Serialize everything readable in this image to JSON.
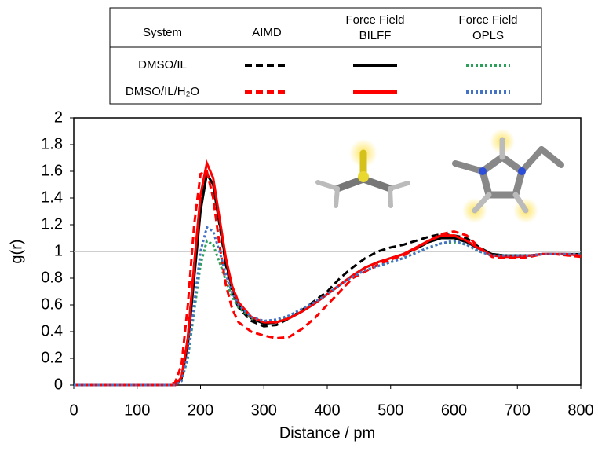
{
  "chart_data": {
    "type": "line",
    "xlabel": "Distance / pm",
    "ylabel": "g(r)",
    "x": [
      0,
      100,
      150,
      160,
      170,
      180,
      190,
      200,
      210,
      220,
      230,
      240,
      250,
      260,
      280,
      300,
      320,
      340,
      360,
      380,
      400,
      420,
      440,
      460,
      480,
      500,
      520,
      540,
      560,
      580,
      600,
      620,
      640,
      660,
      680,
      700,
      720,
      740,
      760,
      780,
      800
    ],
    "xlim": [
      0,
      800
    ],
    "xticks": [
      0,
      100,
      200,
      300,
      400,
      500,
      600,
      700,
      800
    ],
    "ylim": [
      0,
      2
    ],
    "yticks": [
      0,
      0.2,
      0.4,
      0.6,
      0.8,
      1,
      1.2,
      1.4,
      1.6,
      1.8,
      2
    ],
    "reference_line": 1,
    "legend_header": [
      "System",
      "AIMD",
      [
        "Force Field",
        "BILFF"
      ],
      [
        "Force Field",
        "OPLS"
      ]
    ],
    "series_groups": [
      {
        "name": "DMSO/IL",
        "series": [
          {
            "color": "#000000",
            "dash": "dashed",
            "values": [
              0,
              0,
              0,
              0,
              0.05,
              0.35,
              0.9,
              1.4,
              1.58,
              1.5,
              1.2,
              0.9,
              0.7,
              0.58,
              0.48,
              0.44,
              0.45,
              0.5,
              0.56,
              0.63,
              0.7,
              0.8,
              0.88,
              0.95,
              1.0,
              1.03,
              1.05,
              1.08,
              1.11,
              1.13,
              1.12,
              1.1,
              1.03,
              0.98,
              0.97,
              0.97,
              0.97,
              0.98,
              0.98,
              0.98,
              0.97
            ]
          },
          {
            "color": "#000000",
            "dash": "solid",
            "values": [
              0,
              0,
              0,
              0,
              0.05,
              0.3,
              0.8,
              1.3,
              1.58,
              1.5,
              1.22,
              0.92,
              0.72,
              0.6,
              0.5,
              0.46,
              0.47,
              0.5,
              0.55,
              0.61,
              0.68,
              0.75,
              0.82,
              0.88,
              0.92,
              0.95,
              0.98,
              1.02,
              1.07,
              1.1,
              1.1,
              1.07,
              1.02,
              0.98,
              0.97,
              0.97,
              0.97,
              0.98,
              0.98,
              0.98,
              0.98
            ]
          },
          {
            "color": "#2ca05a",
            "dash": "dotted",
            "values": [
              0,
              0,
              0,
              0,
              0.03,
              0.2,
              0.55,
              0.9,
              1.08,
              1.05,
              0.92,
              0.78,
              0.66,
              0.58,
              0.5,
              0.47,
              0.48,
              0.51,
              0.56,
              0.62,
              0.68,
              0.75,
              0.81,
              0.86,
              0.89,
              0.92,
              0.95,
              0.99,
              1.03,
              1.06,
              1.07,
              1.05,
              1.0,
              0.97,
              0.97,
              0.97,
              0.97,
              0.98,
              0.98,
              0.98,
              0.98
            ]
          }
        ]
      },
      {
        "name": "DMSO/IL/H₂O",
        "series": [
          {
            "color": "#ff0000",
            "dash": "dashed",
            "values": [
              0,
              0,
              0,
              0.02,
              0.15,
              0.6,
              1.2,
              1.58,
              1.6,
              1.4,
              1.05,
              0.75,
              0.57,
              0.47,
              0.4,
              0.37,
              0.35,
              0.36,
              0.42,
              0.5,
              0.6,
              0.7,
              0.8,
              0.85,
              0.9,
              0.94,
              0.97,
              1.02,
              1.08,
              1.13,
              1.15,
              1.12,
              1.03,
              0.96,
              0.95,
              0.95,
              0.96,
              0.98,
              0.98,
              0.97,
              0.96
            ]
          },
          {
            "color": "#ff0000",
            "dash": "solid",
            "values": [
              0,
              0,
              0,
              0,
              0.06,
              0.35,
              0.9,
              1.42,
              1.66,
              1.55,
              1.25,
              0.95,
              0.74,
              0.62,
              0.51,
              0.47,
              0.47,
              0.5,
              0.55,
              0.61,
              0.68,
              0.75,
              0.82,
              0.88,
              0.92,
              0.95,
              0.98,
              1.03,
              1.08,
              1.12,
              1.12,
              1.08,
              1.02,
              0.97,
              0.96,
              0.96,
              0.97,
              0.98,
              0.98,
              0.98,
              0.97
            ]
          },
          {
            "color": "#4472c4",
            "dash": "dotted",
            "values": [
              0,
              0,
              0,
              0,
              0.03,
              0.22,
              0.6,
              1.0,
              1.18,
              1.15,
              1.0,
              0.83,
              0.69,
              0.6,
              0.51,
              0.48,
              0.49,
              0.52,
              0.57,
              0.62,
              0.68,
              0.75,
              0.81,
              0.86,
              0.89,
              0.92,
              0.95,
              0.99,
              1.03,
              1.06,
              1.08,
              1.05,
              1.0,
              0.97,
              0.97,
              0.97,
              0.97,
              0.98,
              0.98,
              0.98,
              0.98
            ]
          }
        ]
      }
    ]
  }
}
